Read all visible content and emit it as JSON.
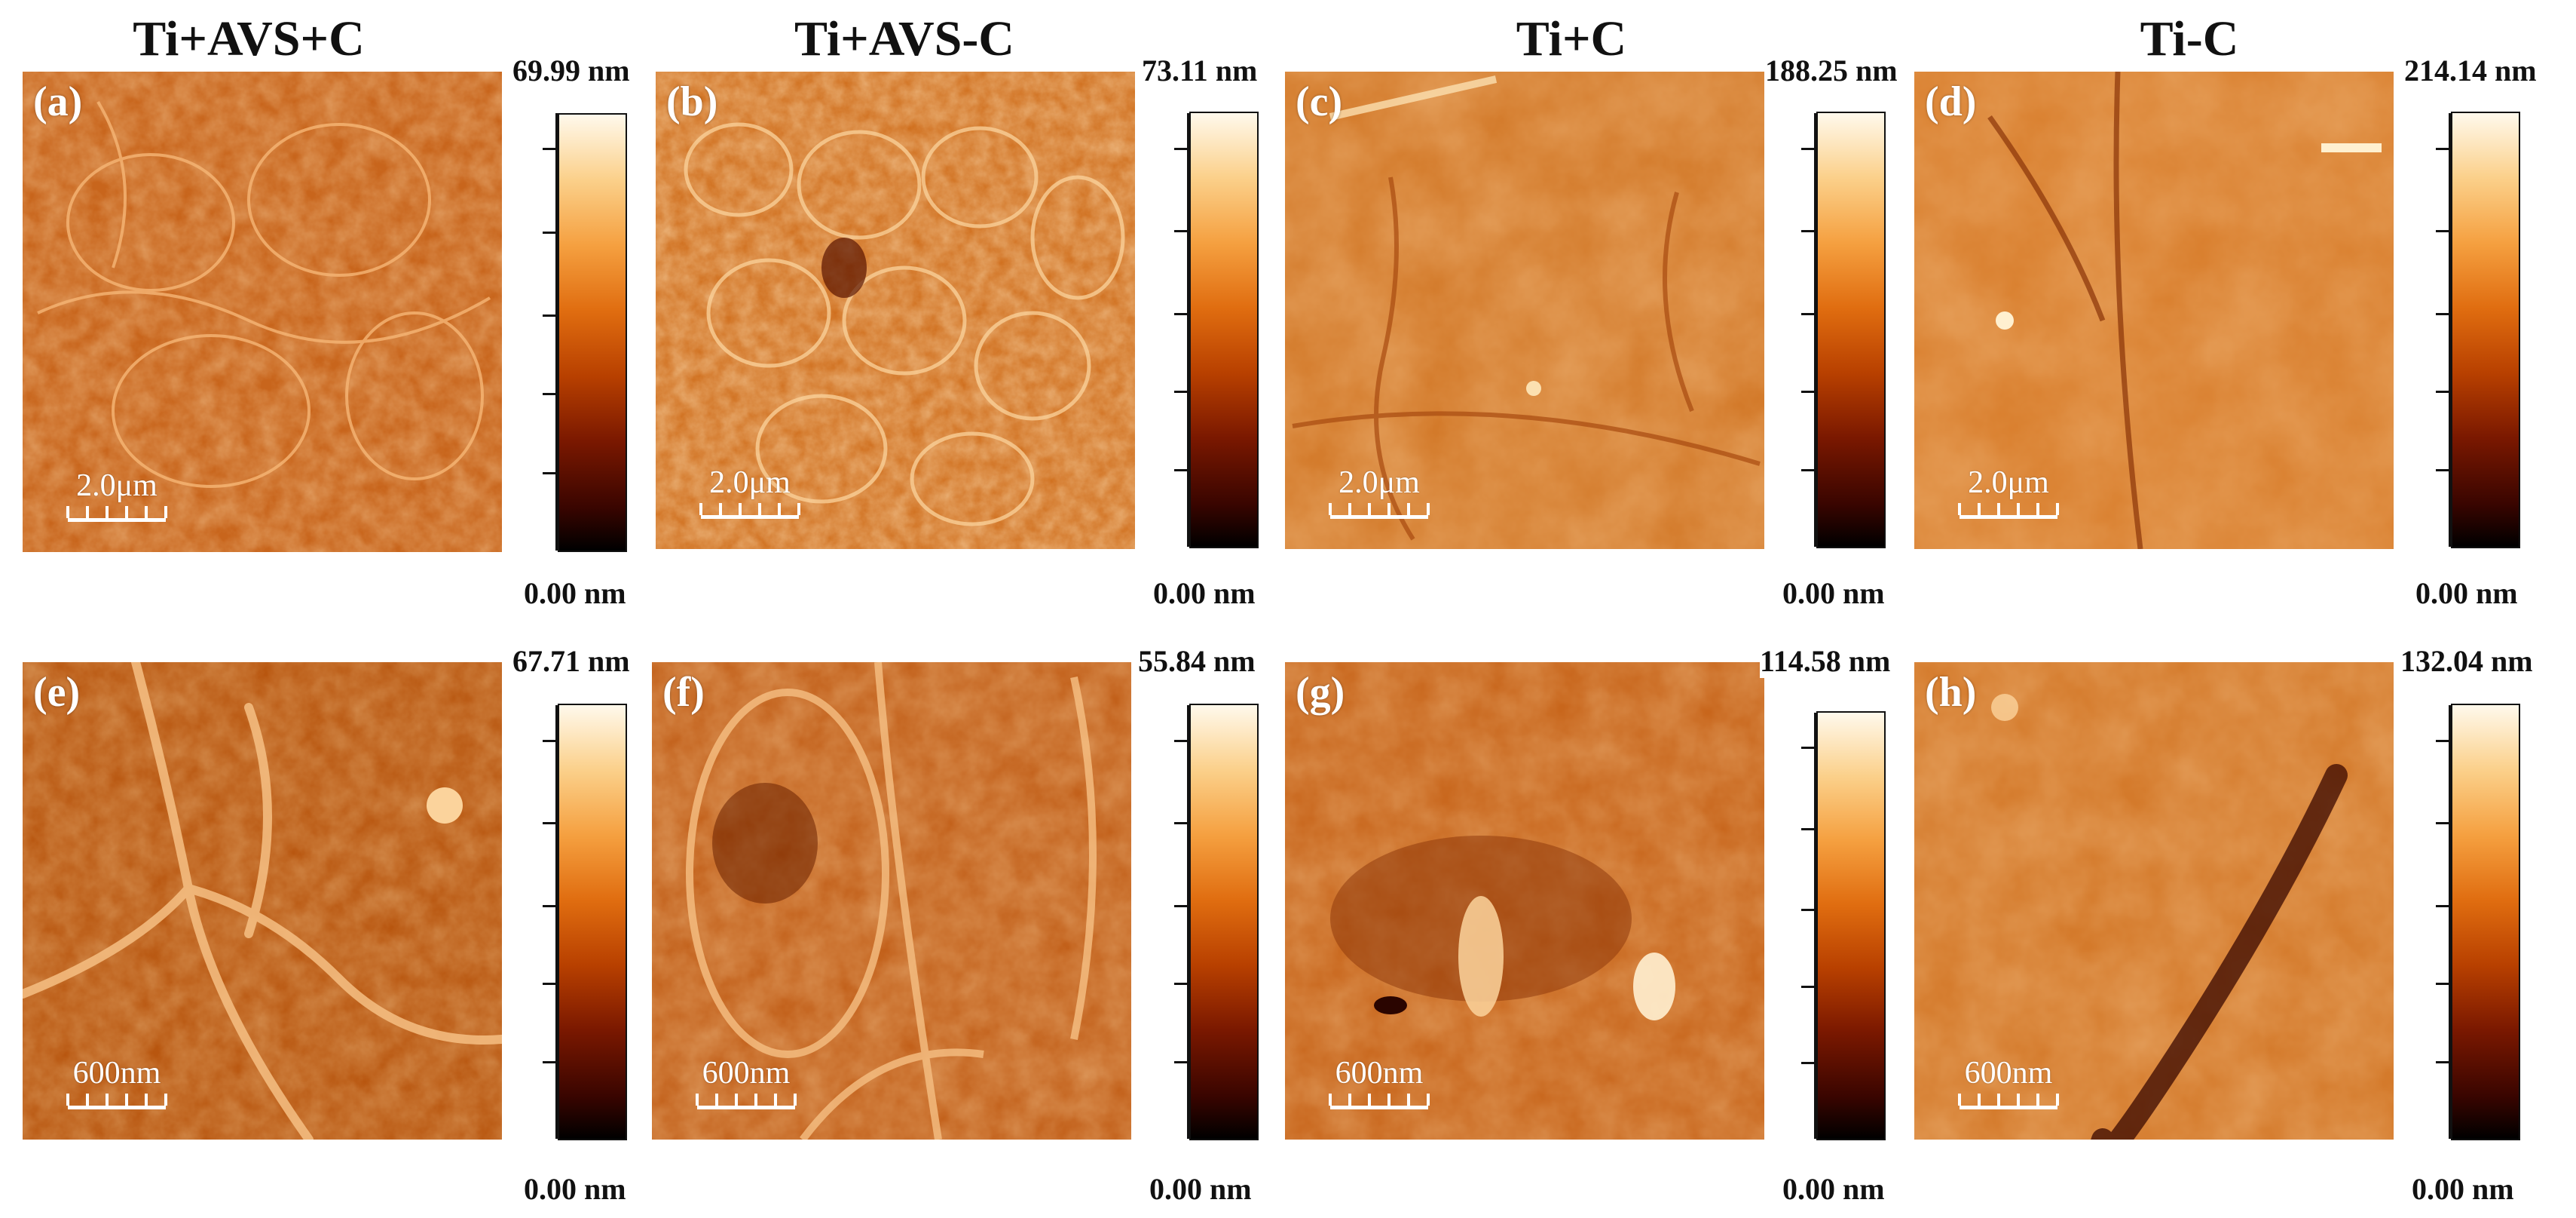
{
  "columns": [
    {
      "title": "Ti+AVS+C"
    },
    {
      "title": "Ti+AVS-C"
    },
    {
      "title": "Ti+C"
    },
    {
      "title": "Ti-C"
    }
  ],
  "panels": [
    {
      "label": "(a)",
      "scale": "2.0μm",
      "max": "69.99 nm",
      "min": "0.00 nm"
    },
    {
      "label": "(b)",
      "scale": "2.0μm",
      "max": "73.11 nm",
      "min": "0.00 nm"
    },
    {
      "label": "(c)",
      "scale": "2.0μm",
      "max": "188.25 nm",
      "min": "0.00 nm"
    },
    {
      "label": "(d)",
      "scale": "2.0μm",
      "max": "214.14 nm",
      "min": "0.00 nm"
    },
    {
      "label": "(e)",
      "scale": "600nm",
      "max": "67.71 nm",
      "min": "0.00 nm"
    },
    {
      "label": "(f)",
      "scale": "600nm",
      "max": "55.84 nm",
      "min": "0.00 nm"
    },
    {
      "label": "(g)",
      "scale": "600nm",
      "max": "114.58 nm",
      "min": "0.00 nm"
    },
    {
      "label": "(h)",
      "scale": "600nm",
      "max": "132.04 nm",
      "min": "0.00 nm"
    }
  ],
  "colors": {
    "afm_base": "#c9661c",
    "afm_dark": "#5a1400",
    "afm_light": "#ffe0a8"
  }
}
